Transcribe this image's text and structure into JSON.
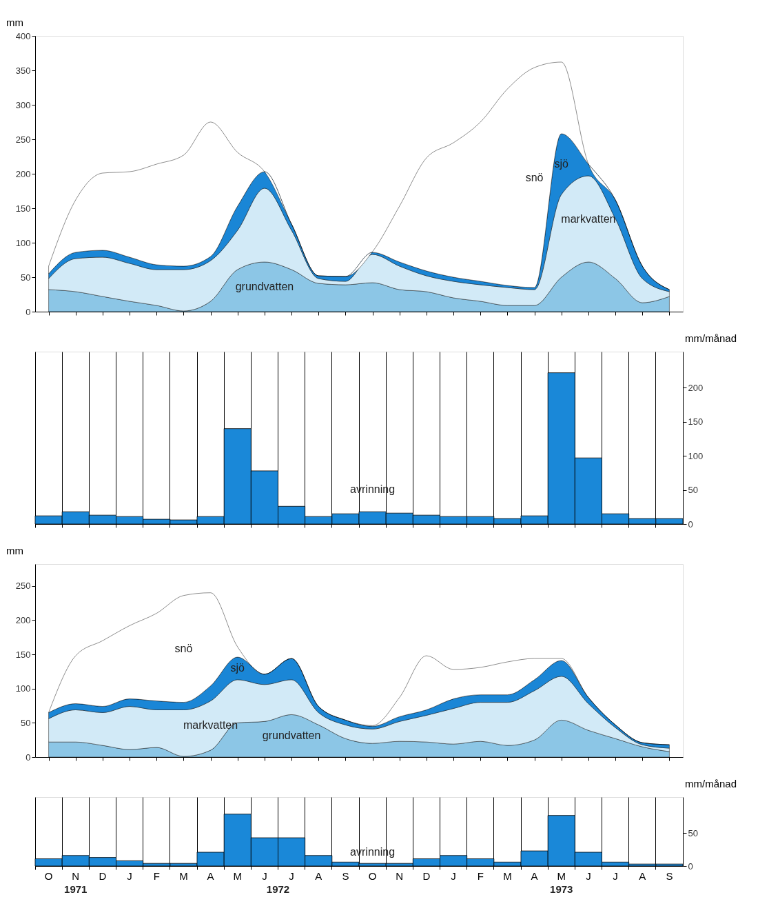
{
  "chart_data": [
    {
      "type": "area",
      "ylabel": "mm",
      "stacked": true,
      "tick_labels": "y",
      "ylim": [
        0,
        400
      ],
      "yticks": [
        0,
        50,
        100,
        150,
        200,
        250,
        300,
        350,
        400
      ],
      "categories": [
        null,
        null,
        null,
        null,
        null,
        null,
        null,
        null,
        null,
        null,
        null,
        null,
        null,
        null,
        null,
        null,
        null,
        null,
        null,
        null,
        null,
        null,
        null,
        null
      ],
      "series": [
        {
          "name": "grundvatten",
          "color": "#8cc6e6",
          "values": [
            32,
            29,
            22,
            15,
            9,
            1,
            15,
            61,
            72,
            61,
            41,
            39,
            42,
            32,
            29,
            20,
            15,
            9,
            9,
            50,
            72,
            48,
            13,
            22
          ]
        },
        {
          "name": "markvatten",
          "color": "#d2eaf7",
          "values": [
            16,
            48,
            57,
            55,
            52,
            60,
            59,
            57,
            107,
            57,
            7,
            5,
            41,
            34,
            23,
            24,
            24,
            26,
            23,
            120,
            125,
            87,
            35,
            7
          ]
        },
        {
          "name": "sjö",
          "color": "#1a86d6",
          "values": [
            7,
            9,
            10,
            9,
            7,
            5,
            6,
            35,
            24,
            9,
            4,
            7,
            3,
            6,
            7,
            6,
            5,
            3,
            3,
            88,
            17,
            27,
            18,
            3
          ]
        },
        {
          "name": "snö",
          "color": "#ffffff",
          "values": [
            11,
            76,
            112,
            124,
            146,
            161,
            195,
            78,
            0,
            0,
            0,
            0,
            1,
            81,
            164,
            195,
            231,
            285,
            319,
            104,
            0,
            0,
            0,
            0
          ]
        }
      ]
    },
    {
      "type": "bar",
      "ylabel": "mm/månad",
      "grid": "x",
      "tick_labels": "y",
      "ylim": [
        0,
        253
      ],
      "yticks": [
        0,
        50,
        100,
        150,
        200
      ],
      "categories": [
        null,
        null,
        null,
        null,
        null,
        null,
        null,
        null,
        null,
        null,
        null,
        null,
        null,
        null,
        null,
        null,
        null,
        null,
        null,
        null,
        null,
        null,
        null,
        null
      ],
      "series": [
        {
          "name": "avrinning",
          "color": "#1a88d8",
          "values": [
            12,
            18,
            13,
            11,
            7,
            6,
            11,
            140,
            78,
            26,
            11,
            15,
            18,
            16,
            13,
            11,
            11,
            8,
            12,
            222,
            97,
            15,
            8,
            8
          ]
        }
      ]
    },
    {
      "type": "area",
      "ylabel": "mm",
      "stacked": true,
      "tick_labels": "y",
      "ylim": [
        0,
        282
      ],
      "yticks": [
        0,
        50,
        100,
        150,
        200,
        250
      ],
      "categories": [
        null,
        null,
        null,
        null,
        null,
        null,
        null,
        null,
        null,
        null,
        null,
        null,
        null,
        null,
        null,
        null,
        null,
        null,
        null,
        null,
        null,
        null,
        null,
        null
      ],
      "series": [
        {
          "name": "grundvatten",
          "color": "#8cc6e6",
          "values": [
            22,
            22,
            17,
            11,
            14,
            1,
            10,
            50,
            52,
            62,
            47,
            27,
            20,
            23,
            22,
            19,
            23,
            17,
            25,
            54,
            39,
            27,
            15,
            8
          ]
        },
        {
          "name": "markvatten",
          "color": "#d2eaf7",
          "values": [
            34,
            47,
            48,
            63,
            55,
            68,
            72,
            63,
            54,
            51,
            18,
            20,
            21,
            29,
            39,
            52,
            57,
            63,
            72,
            64,
            39,
            16,
            3,
            5
          ]
        },
        {
          "name": "sjö",
          "color": "#1a86d6",
          "values": [
            9,
            9,
            9,
            11,
            13,
            11,
            22,
            33,
            15,
            31,
            9,
            7,
            4,
            7,
            8,
            14,
            11,
            11,
            16,
            23,
            9,
            4,
            3,
            5
          ]
        },
        {
          "name": "snö",
          "color": "#ffffff",
          "values": [
            0,
            70,
            96,
            107,
            128,
            156,
            136,
            15,
            0,
            0,
            0,
            0,
            1,
            28,
            79,
            43,
            40,
            48,
            31,
            3,
            0,
            0,
            0,
            0
          ]
        }
      ]
    },
    {
      "type": "bar",
      "ylabel": "mm/månad",
      "grid": "x",
      "ylim": [
        0,
        105
      ],
      "yticks": [
        0,
        50
      ],
      "categories": [
        "O",
        "N",
        "D",
        "J",
        "F",
        "M",
        "A",
        "M",
        "J",
        "J",
        "A",
        "S",
        "O",
        "N",
        "D",
        "J",
        "F",
        "M",
        "A",
        "M",
        "J",
        "J",
        "A",
        "S"
      ],
      "series": [
        {
          "name": "avrinning",
          "color": "#1a88d8",
          "values": [
            11,
            16,
            13,
            8,
            4,
            4,
            21,
            79,
            43,
            43,
            16,
            6,
            4,
            4,
            11,
            16,
            11,
            6,
            23,
            77,
            21,
            6,
            3,
            3
          ]
        }
      ],
      "annotations": [
        "1971",
        "1972",
        "1973"
      ]
    }
  ]
}
